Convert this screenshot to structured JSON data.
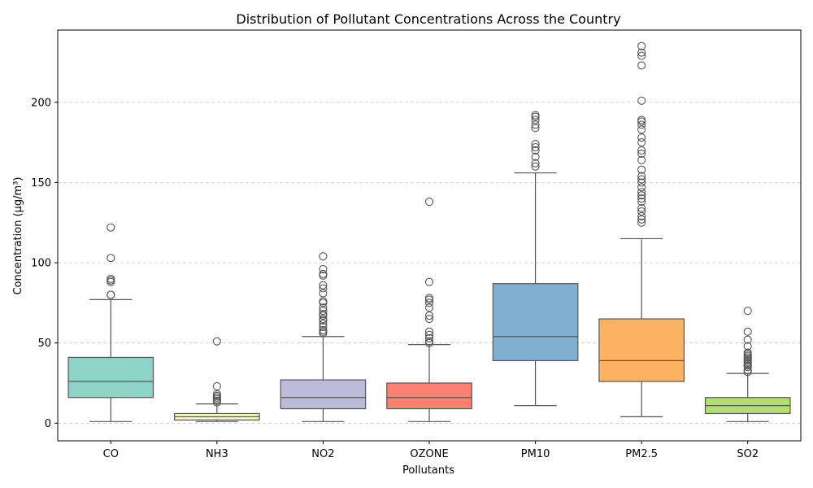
{
  "chart_data": {
    "type": "box",
    "title": "Distribution of Pollutant Concentrations Across the Country",
    "xlabel": "Pollutants",
    "ylabel": "Concentration (µg/m³)",
    "ylim": [
      -11,
      245
    ],
    "yticks": [
      0,
      50,
      100,
      150,
      200
    ],
    "grid": "horizontal dashed",
    "categories": [
      "CO",
      "NH3",
      "NO2",
      "OZONE",
      "PM10",
      "PM2.5",
      "SO2"
    ],
    "boxes": [
      {
        "category": "CO",
        "color": "#8dd3c7",
        "whisker_low": 1,
        "q1": 16,
        "median": 26,
        "q3": 41,
        "whisker_high": 77,
        "outliers": [
          80,
          80,
          88,
          89,
          90,
          103,
          122
        ]
      },
      {
        "category": "NH3",
        "color": "#ffffb3",
        "whisker_low": 1,
        "q1": 2,
        "median": 4,
        "q3": 6,
        "whisker_high": 12,
        "outliers": [
          13,
          14,
          15,
          16,
          17,
          18,
          23,
          51
        ]
      },
      {
        "category": "NO2",
        "color": "#bebada",
        "whisker_low": 1,
        "q1": 9,
        "median": 16,
        "q3": 27,
        "whisker_high": 54,
        "outliers": [
          56,
          57,
          58,
          60,
          62,
          64,
          65,
          67,
          68,
          70,
          72,
          75,
          76,
          81,
          84,
          86,
          92,
          93,
          96,
          104
        ]
      },
      {
        "category": "OZONE",
        "color": "#fb8072",
        "whisker_low": 1,
        "q1": 9,
        "median": 16,
        "q3": 25,
        "whisker_high": 49,
        "outliers": [
          50,
          51,
          53,
          55,
          57,
          65,
          67,
          72,
          75,
          77,
          78,
          88,
          138
        ]
      },
      {
        "category": "PM10",
        "color": "#80b1d3",
        "whisker_low": 11,
        "q1": 39,
        "median": 54,
        "q3": 87,
        "whisker_high": 156,
        "outliers": [
          160,
          162,
          166,
          170,
          172,
          174,
          184,
          186,
          189,
          191,
          192
        ]
      },
      {
        "category": "PM2.5",
        "color": "#fdb462",
        "whisker_low": 4,
        "q1": 26,
        "median": 39,
        "q3": 65,
        "whisker_high": 115,
        "outliers": [
          125,
          127,
          129,
          132,
          134,
          138,
          140,
          142,
          144,
          147,
          150,
          152,
          154,
          158,
          164,
          168,
          170,
          175,
          178,
          183,
          186,
          188,
          189,
          201,
          223,
          229,
          231,
          235
        ]
      },
      {
        "category": "SO2",
        "color": "#b3de69",
        "whisker_low": 1,
        "q1": 6,
        "median": 11,
        "q3": 16,
        "whisker_high": 31,
        "outliers": [
          32,
          33,
          35,
          36,
          37,
          38,
          39,
          40,
          41,
          42,
          43,
          44,
          48,
          52,
          57,
          70
        ]
      }
    ]
  }
}
